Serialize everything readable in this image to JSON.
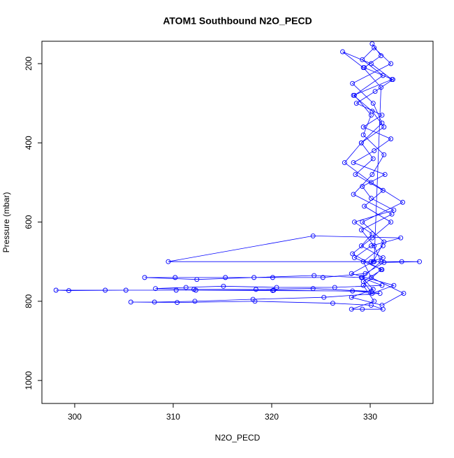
{
  "chart_data": {
    "type": "scatter-line",
    "title": "ATOM1 Southbound N2O_PECD",
    "x_label": "N2O_PECD",
    "y_label": "Pressure (mbar)",
    "color": "#0000ff",
    "xlim": [
      296.67,
      336.38
    ],
    "ylim": [
      1058,
      143.5
    ],
    "xticks": [
      300,
      310,
      320,
      330
    ],
    "yticks": [
      200,
      400,
      600,
      800,
      1000
    ],
    "x": [
      330.2,
      331.1,
      329.4,
      332.3,
      330.5,
      328.6,
      331.2,
      329.3,
      332.1,
      330.4,
      328.3,
      331.5,
      329.2,
      330.1,
      332.4,
      328.4,
      330.2,
      329.1,
      331.3,
      330.1,
      333.2,
      335.0,
      331.4,
      329.5,
      325.2,
      320.1,
      315.3,
      310.2,
      307.1,
      312.4,
      318.2,
      324.3,
      329.1,
      331.2,
      326.4,
      320.5,
      315.1,
      311.3,
      308.2,
      312.1,
      318.4,
      324.2,
      330.1,
      320.2,
      310.3,
      303.1,
      298.1,
      299.4,
      305.2,
      312.3,
      320.1,
      328.2,
      331.0,
      325.3,
      318.1,
      312.2,
      308.1,
      305.7,
      310.4,
      318.3,
      326.2,
      330.1,
      331.3,
      329.2,
      328.1,
      330.4,
      329.3,
      331.1,
      328.2,
      330.2,
      332.1,
      329.4,
      331.3,
      328.5,
      330.3,
      329.1,
      331.4,
      330.2,
      328.3,
      332.2,
      330.1,
      327.2,
      329.3,
      331.1,
      330.4,
      309.5,
      324.2,
      333.1,
      330.1,
      328.4,
      331.2,
      329.3,
      330.2,
      332.4,
      328.1,
      330.3,
      331.4,
      329.2,
      333.3,
      330.1,
      327.4,
      329.1,
      331.2,
      330.3,
      328.2,
      332.1,
      330.4,
      329.2,
      331.3,
      328.4,
      330.1,
      329.3,
      331.4,
      330.2,
      328.3,
      332.2,
      329.1,
      330.4,
      331.1,
      329.2,
      330.3,
      328.1,
      331.2,
      333.4,
      330.1,
      329.3,
      331.3
    ],
    "values": [
      150,
      180,
      210,
      240,
      270,
      300,
      330,
      360,
      390,
      420,
      450,
      480,
      510,
      540,
      570,
      600,
      630,
      660,
      690,
      700,
      700,
      700,
      702,
      730,
      740,
      740,
      740,
      740,
      740,
      745,
      740,
      735,
      740,
      760,
      765,
      765,
      762,
      765,
      768,
      770,
      770,
      768,
      775,
      772,
      772,
      772,
      772,
      773,
      772,
      772,
      773,
      774,
      780,
      790,
      795,
      800,
      802,
      802,
      803,
      800,
      805,
      810,
      820,
      820,
      820,
      800,
      760,
      720,
      680,
      640,
      600,
      560,
      520,
      480,
      440,
      400,
      360,
      320,
      280,
      240,
      200,
      170,
      210,
      260,
      700,
      700,
      635,
      640,
      660,
      690,
      720,
      750,
      780,
      760,
      730,
      700,
      650,
      600,
      550,
      500,
      450,
      400,
      350,
      300,
      250,
      200,
      160,
      190,
      230,
      280,
      330,
      380,
      430,
      480,
      530,
      580,
      620,
      660,
      700,
      740,
      770,
      790,
      810,
      780,
      740,
      700,
      660
    ]
  }
}
